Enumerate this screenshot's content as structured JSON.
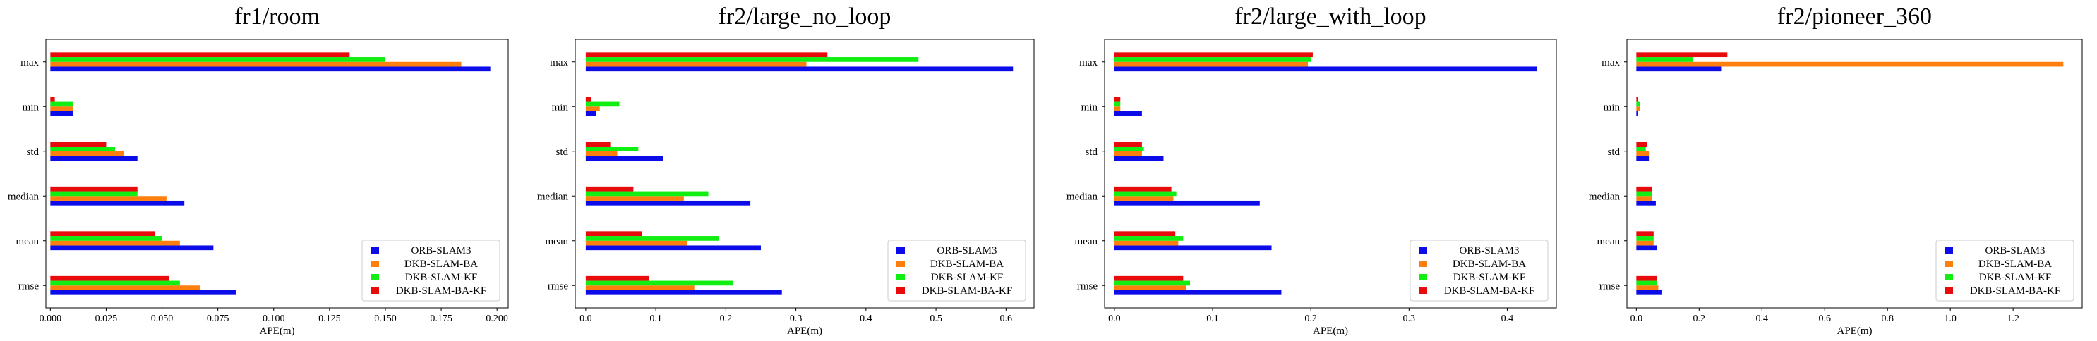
{
  "chart_data": [
    {
      "type": "bar",
      "orientation": "horizontal",
      "title": "fr1/room",
      "xlabel": "APE(m)",
      "ylabel": "",
      "categories": [
        "rmse",
        "mean",
        "median",
        "std",
        "min",
        "max"
      ],
      "series": [
        {
          "name": "ORB-SLAM3",
          "values": [
            0.083,
            0.073,
            0.06,
            0.039,
            0.01,
            0.197
          ]
        },
        {
          "name": "DKB-SLAM-BA",
          "values": [
            0.067,
            0.058,
            0.052,
            0.033,
            0.01,
            0.184
          ]
        },
        {
          "name": "DKB-SLAM-KF",
          "values": [
            0.058,
            0.05,
            0.039,
            0.029,
            0.01,
            0.15
          ]
        },
        {
          "name": "DKB-SLAM-BA-KF",
          "values": [
            0.053,
            0.047,
            0.039,
            0.025,
            0.002,
            0.134
          ]
        }
      ],
      "xlim": [
        -0.002,
        0.205
      ],
      "xticks": [
        0.0,
        0.025,
        0.05,
        0.075,
        0.1,
        0.125,
        0.15,
        0.175,
        0.2
      ],
      "xtick_labels": [
        "0.000",
        "0.025",
        "0.050",
        "0.075",
        "0.100",
        "0.125",
        "0.150",
        "0.175",
        "0.200"
      ],
      "grid": false,
      "legend": "lower-right"
    },
    {
      "type": "bar",
      "orientation": "horizontal",
      "title": "fr2/large_no_loop",
      "xlabel": "APE(m)",
      "ylabel": "",
      "categories": [
        "rmse",
        "mean",
        "median",
        "std",
        "min",
        "max"
      ],
      "series": [
        {
          "name": "ORB-SLAM3",
          "values": [
            0.28,
            0.25,
            0.235,
            0.11,
            0.015,
            0.61
          ]
        },
        {
          "name": "DKB-SLAM-BA",
          "values": [
            0.155,
            0.145,
            0.14,
            0.045,
            0.02,
            0.315
          ]
        },
        {
          "name": "DKB-SLAM-KF",
          "values": [
            0.21,
            0.19,
            0.175,
            0.075,
            0.048,
            0.475
          ]
        },
        {
          "name": "DKB-SLAM-BA-KF",
          "values": [
            0.09,
            0.08,
            0.068,
            0.035,
            0.008,
            0.345
          ]
        }
      ],
      "xlim": [
        -0.015,
        0.64
      ],
      "xticks": [
        0.0,
        0.1,
        0.2,
        0.3,
        0.4,
        0.5,
        0.6
      ],
      "xtick_labels": [
        "0.0",
        "0.1",
        "0.2",
        "0.3",
        "0.4",
        "0.5",
        "0.6"
      ],
      "grid": false,
      "legend": "lower-right"
    },
    {
      "type": "bar",
      "orientation": "horizontal",
      "title": "fr2/large_with_loop",
      "xlabel": "APE(m)",
      "ylabel": "",
      "categories": [
        "rmse",
        "mean",
        "median",
        "std",
        "min",
        "max"
      ],
      "series": [
        {
          "name": "ORB-SLAM3",
          "values": [
            0.17,
            0.16,
            0.148,
            0.05,
            0.028,
            0.43
          ]
        },
        {
          "name": "DKB-SLAM-BA",
          "values": [
            0.073,
            0.065,
            0.06,
            0.028,
            0.006,
            0.197
          ]
        },
        {
          "name": "DKB-SLAM-KF",
          "values": [
            0.077,
            0.07,
            0.063,
            0.03,
            0.006,
            0.2
          ]
        },
        {
          "name": "DKB-SLAM-BA-KF",
          "values": [
            0.07,
            0.062,
            0.058,
            0.028,
            0.006,
            0.202
          ]
        }
      ],
      "xlim": [
        -0.01,
        0.45
      ],
      "xticks": [
        0.0,
        0.1,
        0.2,
        0.3,
        0.4
      ],
      "xtick_labels": [
        "0.0",
        "0.1",
        "0.2",
        "0.3",
        "0.4"
      ],
      "grid": false,
      "legend": "lower-right"
    },
    {
      "type": "bar",
      "orientation": "horizontal",
      "title": "fr2/pioneer_360",
      "xlabel": "APE(m)",
      "ylabel": "",
      "categories": [
        "rmse",
        "mean",
        "median",
        "std",
        "min",
        "max"
      ],
      "series": [
        {
          "name": "ORB-SLAM3",
          "values": [
            0.08,
            0.065,
            0.062,
            0.04,
            0.005,
            0.27
          ]
        },
        {
          "name": "DKB-SLAM-BA",
          "values": [
            0.07,
            0.055,
            0.05,
            0.04,
            0.012,
            1.36
          ]
        },
        {
          "name": "DKB-SLAM-KF",
          "values": [
            0.065,
            0.055,
            0.05,
            0.03,
            0.012,
            0.18
          ]
        },
        {
          "name": "DKB-SLAM-BA-KF",
          "values": [
            0.065,
            0.055,
            0.05,
            0.035,
            0.006,
            0.29
          ]
        }
      ],
      "xlim": [
        -0.03,
        1.42
      ],
      "xticks": [
        0.0,
        0.2,
        0.4,
        0.6,
        0.8,
        1.0,
        1.2
      ],
      "xtick_labels": [
        "0.0",
        "0.2",
        "0.4",
        "0.6",
        "0.8",
        "1.0",
        "1.2"
      ],
      "grid": false,
      "legend": "lower-right"
    }
  ],
  "colors": {
    "ORB-SLAM3": "#0c0ce8",
    "DKB-SLAM-BA": "#ff7f0e",
    "DKB-SLAM-KF": "#11ee11",
    "DKB-SLAM-BA-KF": "#e80b0b"
  }
}
